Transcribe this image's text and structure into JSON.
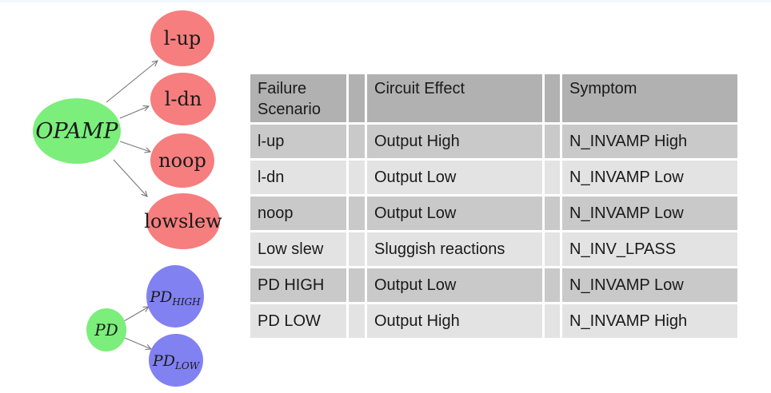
{
  "page": {
    "top_strip_color": "#f2f8fe",
    "background_color": "#ffffff"
  },
  "diagram": {
    "colors": {
      "root_green": "#7bee7b",
      "failure_red": "#f67e7e",
      "pd_blue": "#8181f2",
      "arrow_gray": "#787878",
      "text_black": "#1a1a1a"
    },
    "opamp": {
      "label": "OPAMP"
    },
    "lup": {
      "label": "l-up"
    },
    "ldn": {
      "label": "l-dn"
    },
    "noop": {
      "label": "noop"
    },
    "lowslew": {
      "label": "lowslew"
    },
    "pd": {
      "label": "PD"
    },
    "pdhigh": {
      "main": "PD",
      "sub": "HIGH"
    },
    "pdlow": {
      "main": "PD",
      "sub": "LOW"
    }
  },
  "table": {
    "colors": {
      "header_bg": "#b1b1b1",
      "row_odd_bg": "#c9c9c9",
      "row_even_bg": "#e3e3e3",
      "text": "#1a1a1a"
    },
    "header": {
      "col1": "Failure Scenario",
      "col2": "Circuit Effect",
      "col3": "Symptom"
    },
    "rows": [
      {
        "scenario": "l-up",
        "effect": "Output High",
        "symptom": "N_INVAMP High"
      },
      {
        "scenario": "l-dn",
        "effect": "Output Low",
        "symptom": "N_INVAMP Low"
      },
      {
        "scenario": "noop",
        "effect": "Output Low",
        "symptom": "N_INVAMP Low"
      },
      {
        "scenario": "Low slew",
        "effect": "Sluggish reactions",
        "symptom": "N_INV_LPASS"
      },
      {
        "scenario": "PD HIGH",
        "effect": "Output Low",
        "symptom": "N_INVAMP Low"
      },
      {
        "scenario": "PD LOW",
        "effect": "Output High",
        "symptom": "N_INVAMP High"
      }
    ]
  }
}
